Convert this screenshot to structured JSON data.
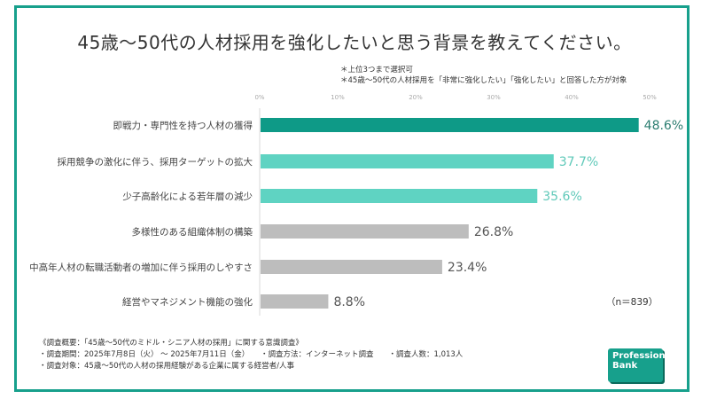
{
  "title": "45歳～50代の人材採用を強化したいと思う背景を教えてください。",
  "notes": [
    "＊上位3つまで選択可",
    "＊45歳～50代の人材採用を「非常に強化したい」「強化したい」と回答した方が対象"
  ],
  "sample_size": "（n＝839）",
  "footer": [
    "《調査概要：「45歳～50代のミドル・シニア人材の採用」に関する意識調査》",
    "・調査期間：2025年7月8日（火） ～ 2025年7月11日（金）　　・調査方法：インターネット調査　　・調査人数：1,013人",
    "・調査対象：45歳～50代の人材の採用経験がある企業に属する経営者/人事"
  ],
  "logo": [
    "Professional",
    "Bank"
  ],
  "colors": {
    "frame": "#17a08c",
    "top": "#0e9a87",
    "highlight": "#5fd3c2",
    "other": "#bdbdbd"
  },
  "chart_data": {
    "type": "bar",
    "orientation": "horizontal",
    "categories": [
      "即戦力・専門性を持つ人材の獲得",
      "採用競争の激化に伴う、採用ターゲットの拡大",
      "少子高齢化による若年層の減少",
      "多様性のある組織体制の構築",
      "中高年人材の転職活動者の増加に伴う採用のしやすさ",
      "経営やマネジメント機能の強化"
    ],
    "values": [
      48.6,
      37.7,
      35.6,
      26.8,
      23.4,
      8.8
    ],
    "value_labels": [
      "48.6%",
      "37.7%",
      "35.6%",
      "26.8%",
      "23.4%",
      "8.8%"
    ],
    "bar_colors": [
      "#0e9a87",
      "#5fd3c2",
      "#5fd3c2",
      "#bdbdbd",
      "#bdbdbd",
      "#bdbdbd"
    ],
    "label_colors": [
      "#2b7d70",
      "#5fc9b9",
      "#5fc9b9",
      "#555555",
      "#555555",
      "#555555"
    ],
    "xlim": [
      0,
      50
    ],
    "ticks": [
      "0%",
      "10%",
      "20%",
      "30%",
      "40%",
      "50%"
    ],
    "grid": false
  }
}
